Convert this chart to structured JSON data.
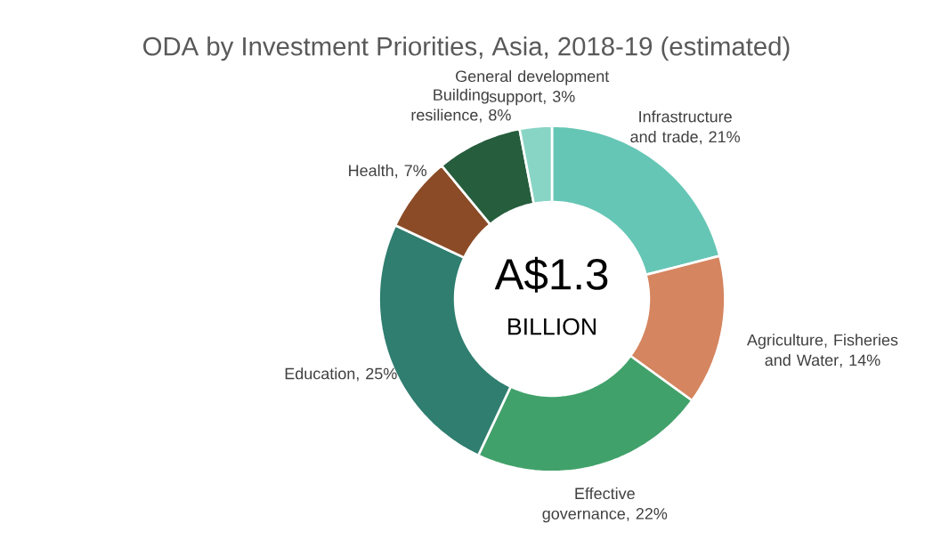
{
  "chart_data": {
    "type": "donut",
    "title": "ODA by Investment Priorities, Asia, 2018-19 (estimated)",
    "categories": [
      "Infrastructure and trade",
      "Agriculture, Fisheries and Water",
      "Effective governance",
      "Education",
      "Health",
      "Building resilience",
      "General development support"
    ],
    "values": [
      21,
      14,
      22,
      25,
      7,
      8,
      3
    ],
    "value_labels": [
      ", 21%",
      ", 14%",
      ", 22%",
      ", 25%",
      ", 7%",
      ", 8%",
      ", 3%"
    ],
    "colors": [
      "#66c6b5",
      "#d5855f",
      "#41a16a",
      "#2f7e70",
      "#8a4b26",
      "#265d3d",
      "#89d5c5"
    ],
    "annotations": [
      "A$1.3",
      "BILLION"
    ]
  }
}
